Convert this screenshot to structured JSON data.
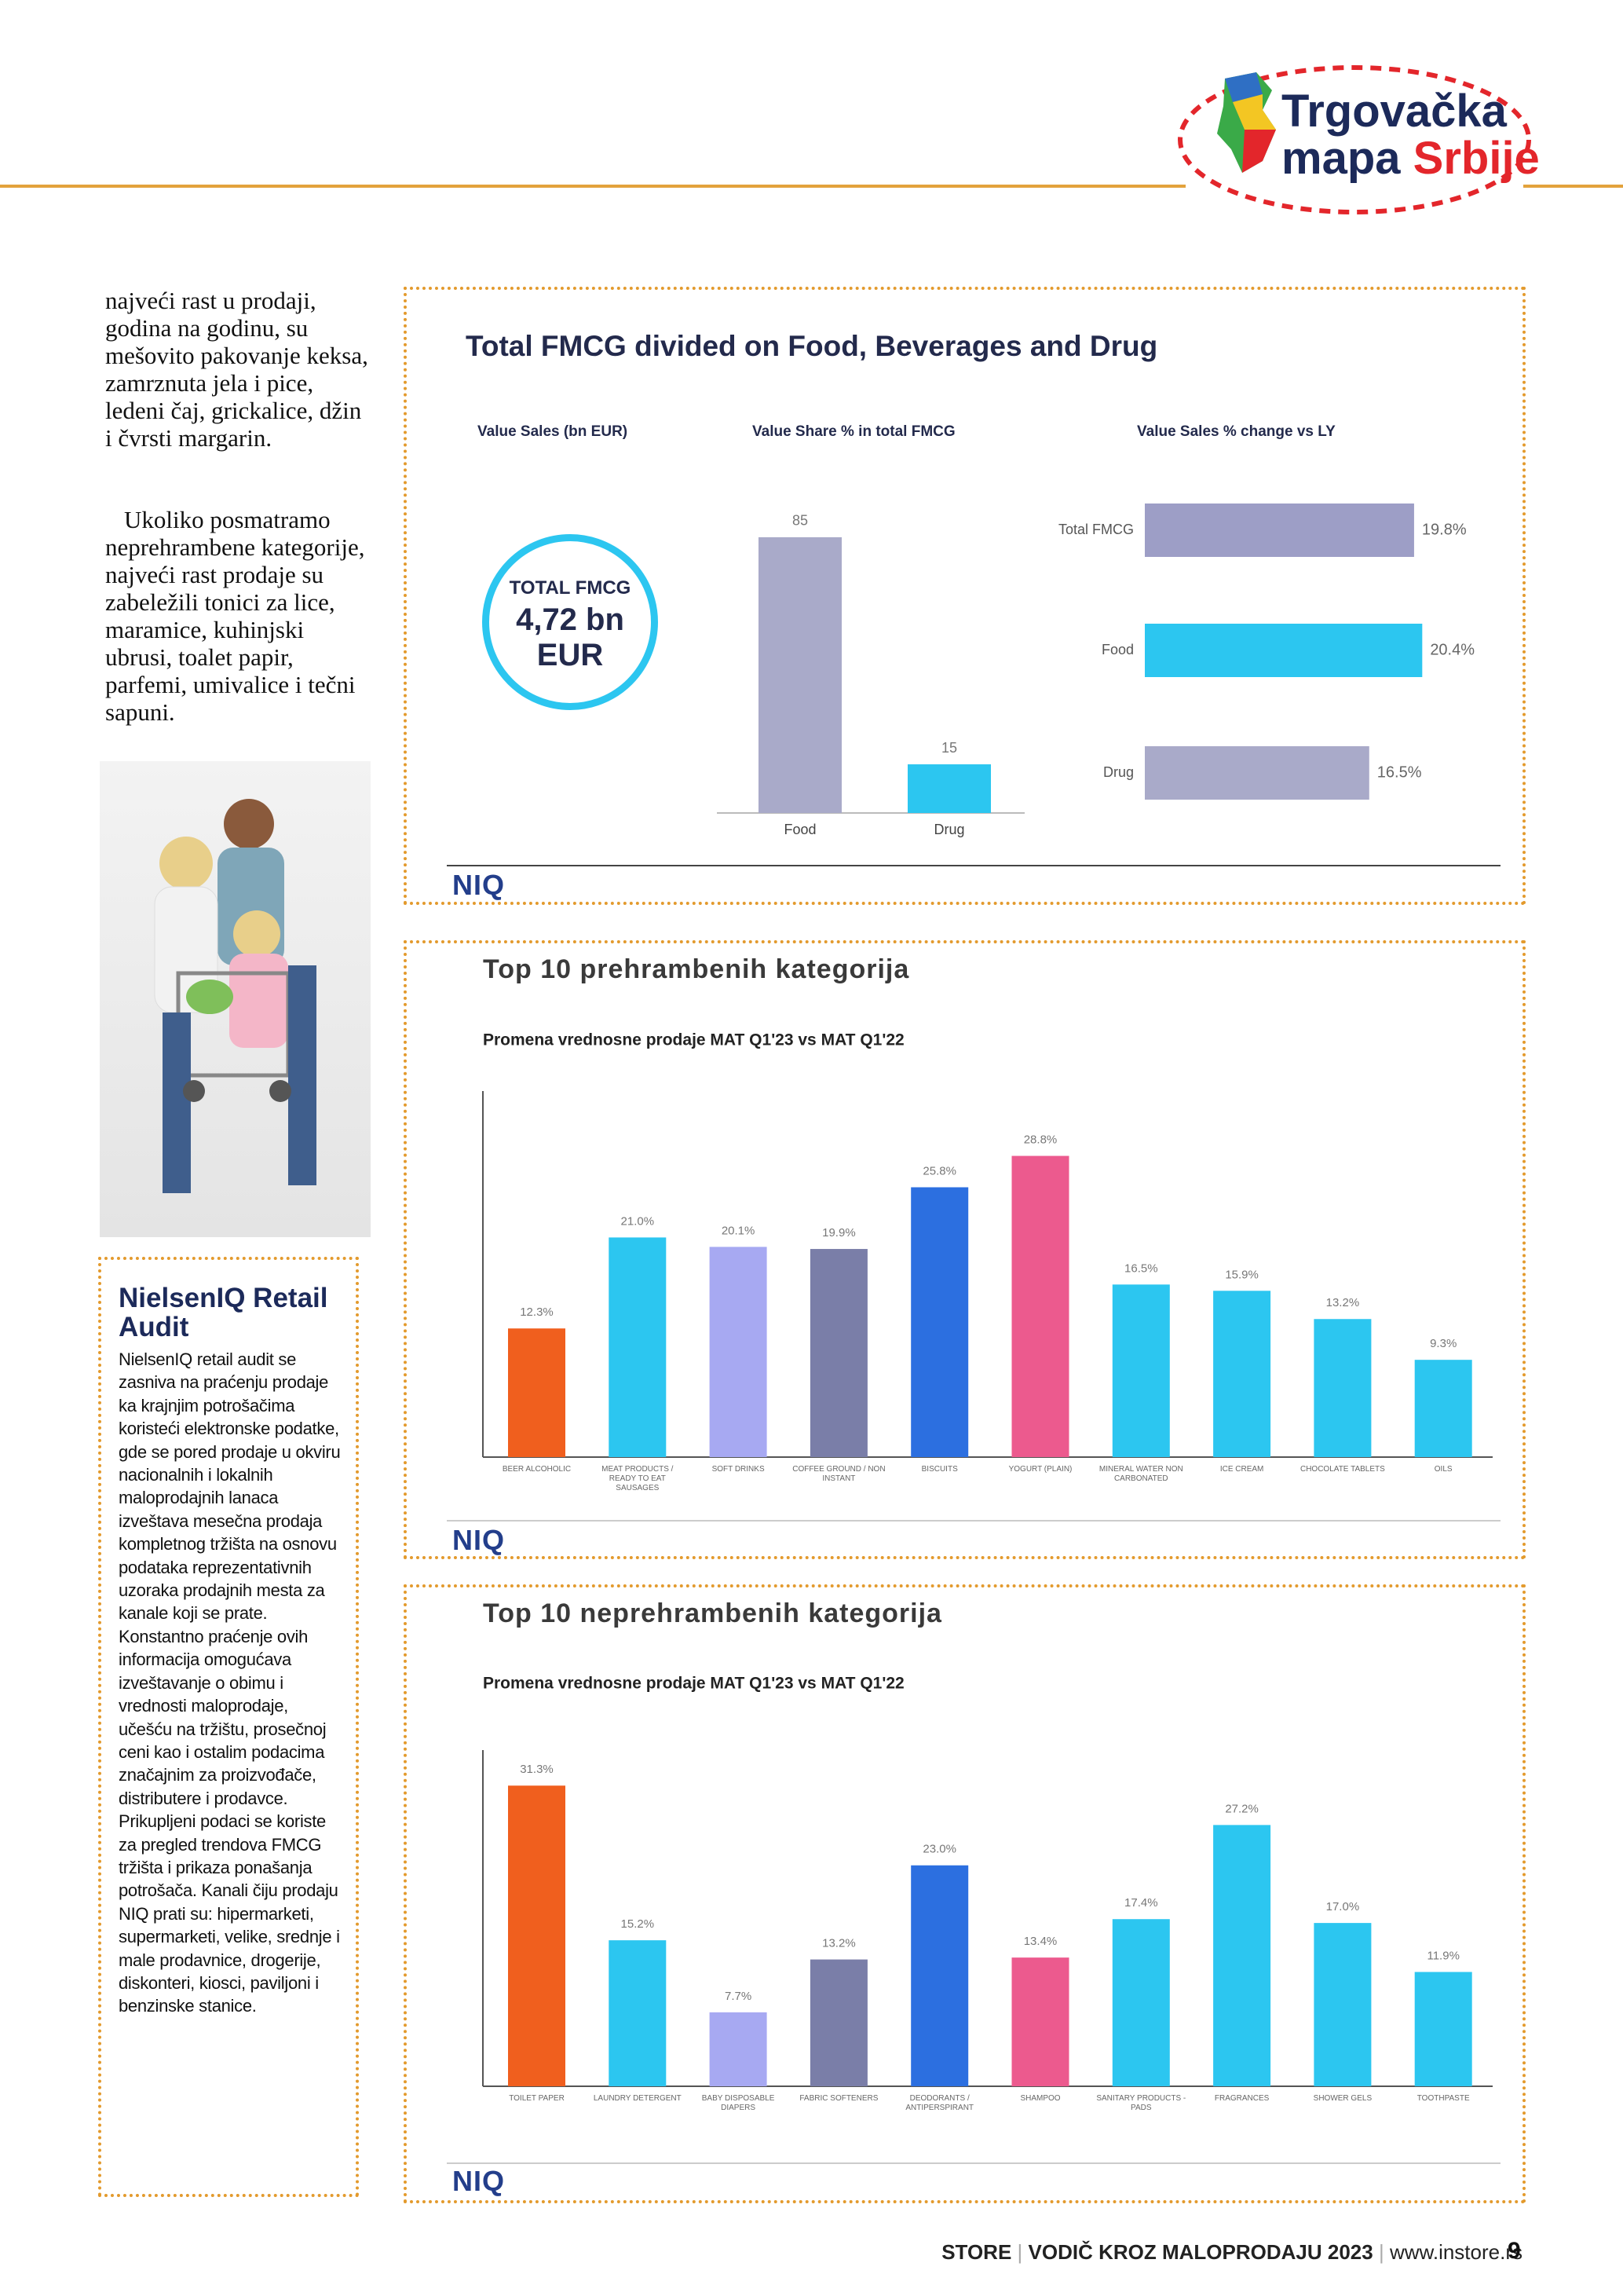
{
  "logo": {
    "line1": "Trgovačka",
    "line2a": "mapa",
    "line2b": "Srbije"
  },
  "intro": {
    "paragraph1": "najveći rast u prodaji, godina na godinu, su mešovito pakovanje keksa, zamrznuta jela i pice, ledeni čaj, grickalice, džin i čvrsti margarin.",
    "paragraph2": "Ukoliko posmatramo neprehrambene kategorije, najveći rast prodaje su zabeležili tonici za lice, maramice, kuhinjski ubrusi, toalet papir, parfemi, umivalice i tečni sapuni."
  },
  "sidebar": {
    "title": "NielsenIQ Retail Audit",
    "body": "NielsenIQ retail audit se zasniva na praćenju prodaje ka krajnjim potrošačima koristeći elektronske podatke, gde se pored prodaje u okviru nacionalnih i lokalnih maloprodajnih lanaca izveštava mesečna prodaja kompletnog tržišta na osnovu podataka reprezentativnih uzoraka prodajnih mesta za kanale koji se prate. Konstantno praćenje ovih informacija omogućava izveštavanje o obimu i vrednosti maloprodaje, učešću na tržištu, prosečnoj ceni kao i ostalim podacima značajnim za proizvođače, distributere i prodavce. Prikupljeni podaci se koriste za pregled trendova FMCG tržišta i prikaza ponašanja potrošača. Kanali čiju prodaju NIQ prati su: hipermarketi, supermarketi, velike, srednje i male prodavnice, drogerije, diskonteri, kiosci, paviljoni i benzinske stanice."
  },
  "fmcg_panel": {
    "title": "Total FMCG divided on Food, Beverages and Drug",
    "sales_label": "Value Sales (bn EUR)",
    "total": [
      "TOTAL FMCG",
      "4,72 bn",
      "EUR"
    ]
  },
  "brand": "NIQ",
  "footer": {
    "magazine": "STORE",
    "title": "VODIČ KROZ MALOPRODAJU 2023",
    "url": "www.instore.rs",
    "page": "9"
  },
  "chart_data": [
    {
      "type": "bar",
      "title": "Value Share % in total FMCG",
      "categories": [
        "Food",
        "Drug"
      ],
      "values": [
        85,
        15
      ],
      "colors": [
        "#a9aac9",
        "#2cc6f0"
      ],
      "ylim": [
        0,
        100
      ]
    },
    {
      "type": "barh",
      "title": "Value Sales % change vs LY",
      "categories": [
        "Total FMCG",
        "Food",
        "Drug"
      ],
      "values": [
        19.8,
        20.4,
        16.5
      ],
      "value_labels": [
        "19.8%",
        "20.4%",
        "16.5%"
      ],
      "colors": [
        "#9d9ec6",
        "#2cc6f0",
        "#a9aac9"
      ],
      "xlim": [
        0,
        25
      ]
    },
    {
      "type": "bar",
      "title": "Top 10 prehrambenih kategorija",
      "subtitle": "Promena vrednosne prodaje MAT Q1'23 vs MAT Q1'22",
      "categories": [
        "BEER ALCOHOLIC",
        "MEAT PRODUCTS / READY TO EAT SAUSAGES",
        "SOFT DRINKS",
        "COFFEE GROUND / NON INSTANT",
        "BISCUITS",
        "YOGURT (PLAIN)",
        "MINERAL WATER NON CARBONATED",
        "ICE CREAM",
        "CHOCOLATE TABLETS",
        "OILS"
      ],
      "values": [
        12.3,
        21.0,
        20.1,
        19.9,
        25.8,
        28.8,
        16.5,
        15.9,
        13.2,
        9.3
      ],
      "value_labels": [
        "12.3%",
        "21.0%",
        "20.1%",
        "19.9%",
        "25.8%",
        "28.8%",
        "16.5%",
        "15.9%",
        "13.2%",
        "9.3%"
      ],
      "colors": [
        "#f05f1e",
        "#2cc6f0",
        "#a7a9f2",
        "#7a7ea8",
        "#2c6fe0",
        "#ec5a8e",
        "#2cc6f0",
        "#2cc6f0",
        "#2cc6f0",
        "#2cc6f0"
      ],
      "ylim": [
        0,
        35
      ]
    },
    {
      "type": "bar",
      "title": "Top 10 neprehrambenih kategorija",
      "subtitle": "Promena vrednosne prodaje MAT Q1'23 vs MAT Q1'22",
      "categories": [
        "TOILET PAPER",
        "LAUNDRY DETERGENT",
        "BABY DISPOSABLE DIAPERS",
        "FABRIC SOFTENERS",
        "DEODORANTS / ANTIPERSPIRANT",
        "SHAMPOO",
        "SANITARY PRODUCTS - PADS",
        "FRAGRANCES",
        "SHOWER GELS",
        "TOOTHPASTE"
      ],
      "values": [
        31.3,
        15.2,
        7.7,
        13.2,
        23.0,
        13.4,
        17.4,
        27.2,
        17.0,
        11.9
      ],
      "value_labels": [
        "31.3%",
        "15.2%",
        "7.7%",
        "13.2%",
        "23.0%",
        "13.4%",
        "17.4%",
        "27.2%",
        "17.0%",
        "11.9%"
      ],
      "colors": [
        "#f05f1e",
        "#2cc6f0",
        "#a7a9f2",
        "#7a7ea8",
        "#2c6fe0",
        "#ec5a8e",
        "#2cc6f0",
        "#2cc6f0",
        "#2cc6f0",
        "#2cc6f0"
      ],
      "ylim": [
        0,
        35
      ]
    }
  ]
}
